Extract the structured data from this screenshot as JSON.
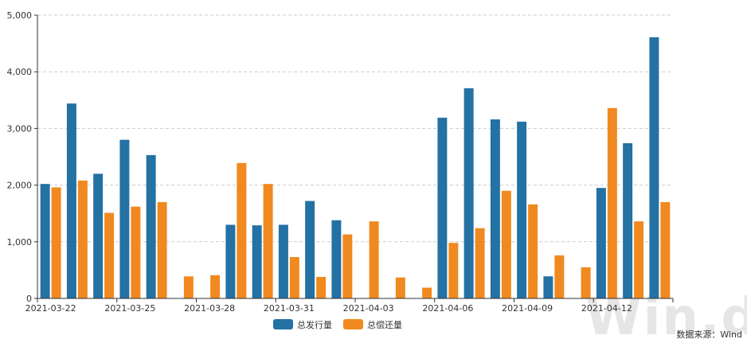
{
  "chart_data": {
    "type": "bar",
    "x": [
      "2021-03-22",
      "2021-03-23",
      "2021-03-24",
      "2021-03-25",
      "2021-03-26",
      "2021-03-27",
      "2021-03-28",
      "2021-03-29",
      "2021-03-30",
      "2021-03-31",
      "2021-04-01",
      "2021-04-02",
      "2021-04-03",
      "2021-04-04",
      "2021-04-05",
      "2021-04-06",
      "2021-04-07",
      "2021-04-08",
      "2021-04-09",
      "2021-04-10",
      "2021-04-11",
      "2021-04-12",
      "2021-04-13",
      "2021-04-14"
    ],
    "x_tick_labels": [
      "2021-03-22",
      "2021-03-25",
      "2021-03-28",
      "2021-03-31",
      "2021-04-03",
      "2021-04-06",
      "2021-04-09",
      "2021-04-12"
    ],
    "series": [
      {
        "name": "总发行量",
        "color": "#2471a3",
        "values": [
          2020,
          3440,
          2200,
          2800,
          2530,
          0,
          0,
          1300,
          1290,
          1300,
          1720,
          1380,
          0,
          0,
          0,
          3190,
          3710,
          3160,
          3120,
          390,
          0,
          1950,
          2740,
          4610
        ]
      },
      {
        "name": "总偿还量",
        "color": "#f0891f",
        "values": [
          1960,
          2080,
          1510,
          1620,
          1700,
          390,
          410,
          2390,
          2020,
          730,
          380,
          1130,
          1360,
          370,
          190,
          980,
          1240,
          1900,
          1660,
          760,
          550,
          3360,
          1360,
          1700
        ]
      }
    ],
    "y_ticks": [
      "0",
      "1,000",
      "2,000",
      "3,000",
      "4,000",
      "5,000"
    ],
    "ylim": [
      0,
      5000
    ],
    "grid": "horizontal dashed",
    "legend": "bottom-center",
    "title": "",
    "xlabel": "",
    "ylabel": ""
  },
  "watermark": "Win.d",
  "source_text": "数据来源：Wind"
}
